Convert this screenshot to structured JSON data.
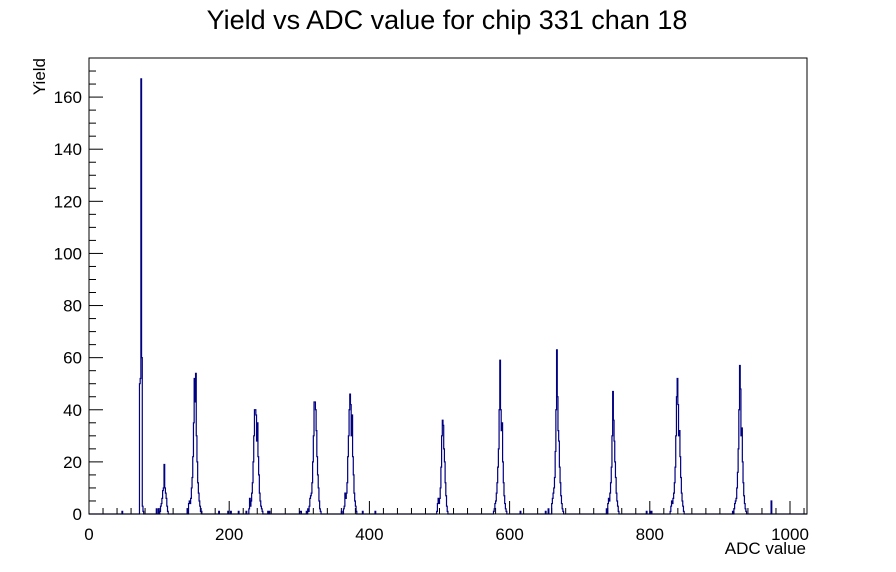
{
  "chart_data": {
    "type": "histogram",
    "title": "Yield vs ADC value for chip 331 chan 18",
    "xlabel": "ADC value",
    "ylabel": "Yield",
    "xlim": [
      0,
      1024
    ],
    "ylim": [
      0,
      175
    ],
    "x_ticks": [
      0,
      200,
      400,
      600,
      800,
      1000
    ],
    "y_ticks": [
      0,
      20,
      40,
      60,
      80,
      100,
      120,
      140,
      160
    ],
    "x_tick_labels": [
      "0",
      "200",
      "400",
      "600",
      "800",
      "1000"
    ],
    "y_tick_labels": [
      "0",
      "20",
      "40",
      "60",
      "80",
      "100",
      "120",
      "140",
      "160"
    ],
    "bin_width": 1,
    "line_color": "#000080",
    "bins": [
      [
        47,
        1
      ],
      [
        72,
        50
      ],
      [
        73,
        52
      ],
      [
        74,
        167
      ],
      [
        75,
        60
      ],
      [
        76,
        3
      ],
      [
        77,
        1
      ],
      [
        96,
        2
      ],
      [
        99,
        2
      ],
      [
        101,
        1
      ],
      [
        102,
        3
      ],
      [
        103,
        4
      ],
      [
        104,
        6
      ],
      [
        105,
        9
      ],
      [
        106,
        10
      ],
      [
        107,
        19
      ],
      [
        108,
        10
      ],
      [
        109,
        8
      ],
      [
        110,
        6
      ],
      [
        111,
        3
      ],
      [
        112,
        1
      ],
      [
        140,
        2
      ],
      [
        142,
        4
      ],
      [
        143,
        5
      ],
      [
        144,
        4
      ],
      [
        145,
        6
      ],
      [
        146,
        10
      ],
      [
        147,
        14
      ],
      [
        148,
        22
      ],
      [
        149,
        35
      ],
      [
        150,
        52
      ],
      [
        151,
        43
      ],
      [
        152,
        54
      ],
      [
        153,
        30
      ],
      [
        154,
        20
      ],
      [
        155,
        12
      ],
      [
        156,
        8
      ],
      [
        157,
        5
      ],
      [
        158,
        3
      ],
      [
        159,
        1
      ],
      [
        160,
        1
      ],
      [
        185,
        1
      ],
      [
        198,
        1
      ],
      [
        202,
        1
      ],
      [
        213,
        1
      ],
      [
        224,
        1
      ],
      [
        228,
        2
      ],
      [
        229,
        6
      ],
      [
        230,
        3
      ],
      [
        231,
        5
      ],
      [
        232,
        8
      ],
      [
        233,
        12
      ],
      [
        234,
        20
      ],
      [
        235,
        30
      ],
      [
        236,
        40
      ],
      [
        237,
        40
      ],
      [
        238,
        38
      ],
      [
        239,
        28
      ],
      [
        240,
        35
      ],
      [
        241,
        22
      ],
      [
        242,
        15
      ],
      [
        243,
        8
      ],
      [
        244,
        5
      ],
      [
        245,
        3
      ],
      [
        246,
        2
      ],
      [
        247,
        1
      ],
      [
        255,
        1
      ],
      [
        257,
        1
      ],
      [
        301,
        1
      ],
      [
        302,
        1
      ],
      [
        310,
        1
      ],
      [
        312,
        2
      ],
      [
        313,
        1
      ],
      [
        314,
        3
      ],
      [
        315,
        6
      ],
      [
        316,
        7
      ],
      [
        317,
        8
      ],
      [
        318,
        12
      ],
      [
        319,
        20
      ],
      [
        320,
        30
      ],
      [
        321,
        43
      ],
      [
        322,
        43
      ],
      [
        323,
        40
      ],
      [
        324,
        32
      ],
      [
        325,
        22
      ],
      [
        326,
        15
      ],
      [
        327,
        10
      ],
      [
        328,
        5
      ],
      [
        329,
        2
      ],
      [
        330,
        1
      ],
      [
        360,
        1
      ],
      [
        363,
        2
      ],
      [
        364,
        3
      ],
      [
        365,
        8
      ],
      [
        366,
        6
      ],
      [
        367,
        8
      ],
      [
        368,
        12
      ],
      [
        369,
        22
      ],
      [
        370,
        30
      ],
      [
        371,
        40
      ],
      [
        372,
        46
      ],
      [
        373,
        42
      ],
      [
        374,
        30
      ],
      [
        375,
        38
      ],
      [
        376,
        22
      ],
      [
        377,
        15
      ],
      [
        378,
        8
      ],
      [
        379,
        5
      ],
      [
        380,
        3
      ],
      [
        381,
        1
      ],
      [
        390,
        1
      ],
      [
        408,
        1
      ],
      [
        496,
        1
      ],
      [
        497,
        4
      ],
      [
        498,
        6
      ],
      [
        499,
        4
      ],
      [
        500,
        6
      ],
      [
        501,
        10
      ],
      [
        502,
        18
      ],
      [
        503,
        30
      ],
      [
        504,
        36
      ],
      [
        505,
        34
      ],
      [
        506,
        25
      ],
      [
        507,
        20
      ],
      [
        508,
        12
      ],
      [
        509,
        7
      ],
      [
        510,
        3
      ],
      [
        511,
        1
      ],
      [
        577,
        1
      ],
      [
        578,
        2
      ],
      [
        579,
        4
      ],
      [
        580,
        5
      ],
      [
        581,
        8
      ],
      [
        582,
        12
      ],
      [
        583,
        18
      ],
      [
        584,
        25
      ],
      [
        585,
        40
      ],
      [
        586,
        59
      ],
      [
        587,
        40
      ],
      [
        588,
        32
      ],
      [
        589,
        35
      ],
      [
        590,
        20
      ],
      [
        591,
        12
      ],
      [
        592,
        7
      ],
      [
        593,
        4
      ],
      [
        594,
        2
      ],
      [
        595,
        1
      ],
      [
        615,
        1
      ],
      [
        651,
        1
      ],
      [
        655,
        2
      ],
      [
        660,
        4
      ],
      [
        661,
        6
      ],
      [
        662,
        8
      ],
      [
        663,
        10
      ],
      [
        664,
        14
      ],
      [
        665,
        24
      ],
      [
        666,
        40
      ],
      [
        667,
        63
      ],
      [
        668,
        45
      ],
      [
        669,
        32
      ],
      [
        670,
        28
      ],
      [
        671,
        18
      ],
      [
        672,
        12
      ],
      [
        673,
        7
      ],
      [
        674,
        4
      ],
      [
        675,
        2
      ],
      [
        676,
        1
      ],
      [
        738,
        2
      ],
      [
        740,
        4
      ],
      [
        741,
        6
      ],
      [
        742,
        5
      ],
      [
        743,
        8
      ],
      [
        744,
        12
      ],
      [
        745,
        18
      ],
      [
        746,
        30
      ],
      [
        747,
        47
      ],
      [
        748,
        36
      ],
      [
        749,
        28
      ],
      [
        750,
        20
      ],
      [
        751,
        14
      ],
      [
        752,
        8
      ],
      [
        753,
        5
      ],
      [
        754,
        3
      ],
      [
        755,
        1
      ],
      [
        795,
        1
      ],
      [
        800,
        1
      ],
      [
        802,
        1
      ],
      [
        829,
        1
      ],
      [
        830,
        3
      ],
      [
        831,
        5
      ],
      [
        832,
        4
      ],
      [
        833,
        6
      ],
      [
        834,
        8
      ],
      [
        835,
        12
      ],
      [
        836,
        18
      ],
      [
        837,
        30
      ],
      [
        838,
        45
      ],
      [
        839,
        52
      ],
      [
        840,
        42
      ],
      [
        841,
        30
      ],
      [
        842,
        32
      ],
      [
        843,
        22
      ],
      [
        844,
        14
      ],
      [
        845,
        8
      ],
      [
        846,
        5
      ],
      [
        847,
        3
      ],
      [
        848,
        1
      ],
      [
        918,
        1
      ],
      [
        920,
        2
      ],
      [
        921,
        4
      ],
      [
        922,
        5
      ],
      [
        923,
        6
      ],
      [
        924,
        10
      ],
      [
        925,
        16
      ],
      [
        926,
        25
      ],
      [
        927,
        40
      ],
      [
        928,
        57
      ],
      [
        929,
        48
      ],
      [
        930,
        30
      ],
      [
        931,
        33
      ],
      [
        932,
        20
      ],
      [
        933,
        12
      ],
      [
        934,
        7
      ],
      [
        935,
        4
      ],
      [
        936,
        2
      ],
      [
        937,
        1
      ],
      [
        973,
        5
      ]
    ]
  }
}
